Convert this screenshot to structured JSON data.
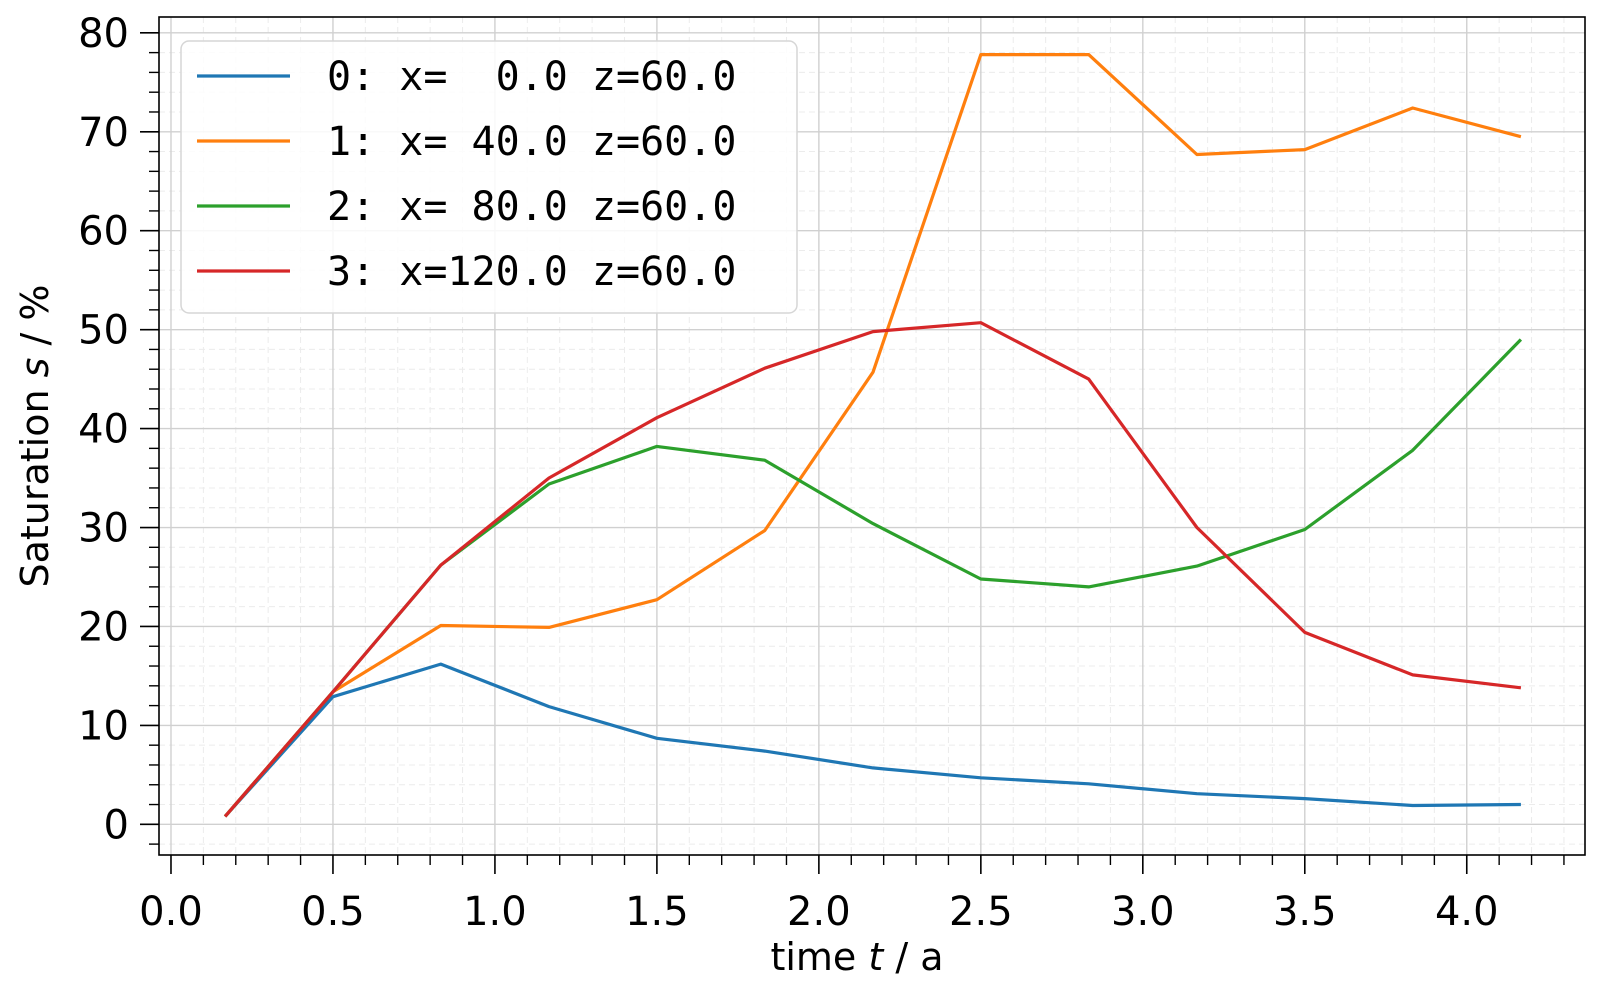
{
  "chart_data": {
    "type": "line",
    "title": "",
    "xlabel": "time t / a",
    "xlabel_parts": {
      "prefix": "time ",
      "var": "t",
      "suffix": " / a"
    },
    "ylabel": "Saturation s / %",
    "ylabel_parts": {
      "prefix": "Saturation ",
      "var": "s",
      "suffix": " / %"
    },
    "xlim": [
      -0.037,
      4.365
    ],
    "ylim": [
      -3.1,
      81.6
    ],
    "xticks": [
      0.0,
      0.5,
      1.0,
      1.5,
      2.0,
      2.5,
      3.0,
      3.5,
      4.0
    ],
    "xtick_labels": [
      "0.0",
      "0.5",
      "1.0",
      "1.5",
      "2.0",
      "2.5",
      "3.0",
      "3.5",
      "4.0"
    ],
    "x_minor_step": 0.1,
    "yticks": [
      0,
      10,
      20,
      30,
      40,
      50,
      60,
      70,
      80
    ],
    "ytick_labels": [
      "0",
      "10",
      "20",
      "30",
      "40",
      "50",
      "60",
      "70",
      "80"
    ],
    "y_minor_step": 2,
    "grid": true,
    "legend_position": "upper left",
    "x": [
      0.167,
      0.5,
      0.833,
      1.167,
      1.5,
      1.833,
      2.167,
      2.5,
      2.833,
      3.167,
      3.5,
      3.833,
      4.167
    ],
    "series": [
      {
        "name": "0: x=  0.0 z=60.0",
        "color": "#1f77b4",
        "values": [
          0.8,
          12.9,
          16.2,
          11.9,
          8.7,
          7.4,
          5.7,
          4.7,
          4.1,
          3.1,
          2.6,
          1.9,
          2.0
        ]
      },
      {
        "name": "1: x= 40.0 z=60.0",
        "color": "#ff7f0e",
        "values": [
          0.8,
          13.4,
          20.1,
          19.9,
          22.7,
          29.7,
          45.7,
          77.8,
          77.8,
          67.7,
          68.2,
          72.4,
          69.5
        ]
      },
      {
        "name": "2: x= 80.0 z=60.0",
        "color": "#2ca02c",
        "values": [
          0.8,
          13.4,
          26.2,
          34.4,
          38.2,
          36.8,
          30.4,
          24.8,
          24.0,
          26.1,
          29.8,
          37.8,
          49.0
        ]
      },
      {
        "name": "3: x=120.0 z=60.0",
        "color": "#d62728",
        "values": [
          0.8,
          13.4,
          26.2,
          35.0,
          41.1,
          46.1,
          49.8,
          50.7,
          45.0,
          30.0,
          19.4,
          15.1,
          13.8
        ]
      }
    ]
  }
}
